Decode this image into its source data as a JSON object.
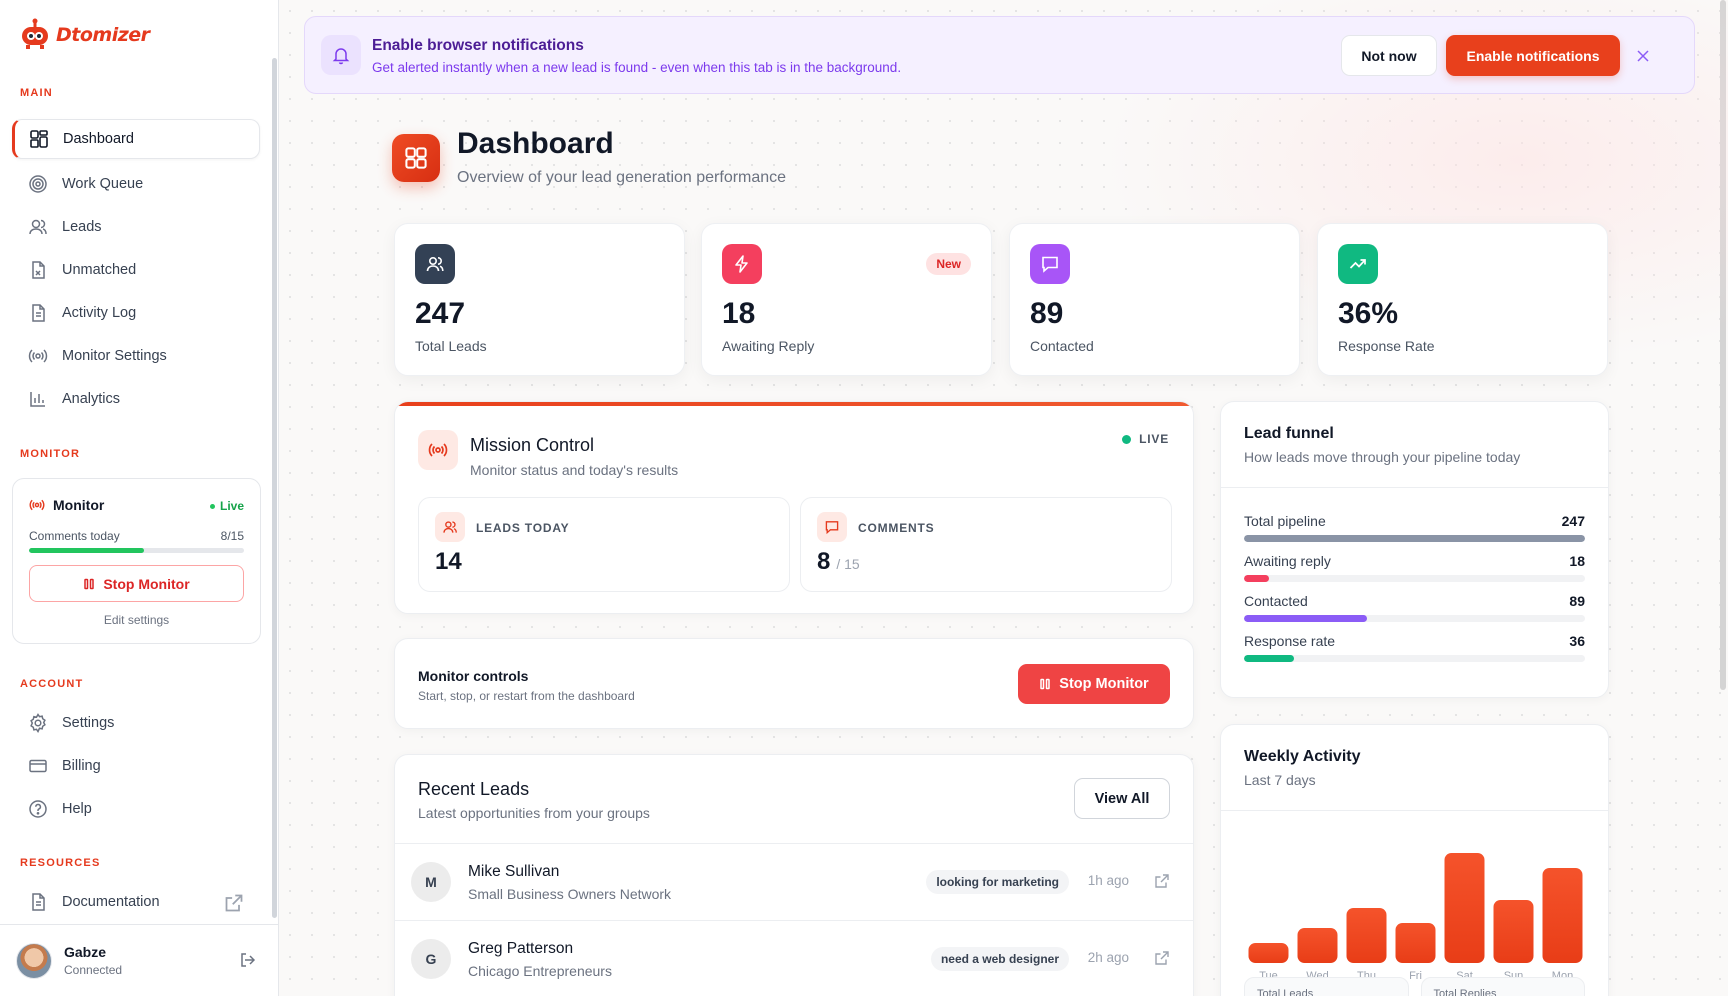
{
  "brand": {
    "name": "Dtomizer"
  },
  "sidebar": {
    "sections": {
      "main": "MAIN",
      "monitor": "MONITOR",
      "account": "ACCOUNT",
      "resources": "RESOURCES"
    },
    "main_items": [
      {
        "label": "Dashboard",
        "icon": "dashboard-icon",
        "active": true
      },
      {
        "label": "Work Queue",
        "icon": "target-icon"
      },
      {
        "label": "Leads",
        "icon": "users-icon"
      },
      {
        "label": "Unmatched",
        "icon": "file-x-icon"
      },
      {
        "label": "Activity Log",
        "icon": "file-text-icon"
      },
      {
        "label": "Monitor Settings",
        "icon": "radio-icon"
      },
      {
        "label": "Analytics",
        "icon": "bar-chart-icon"
      }
    ],
    "monitor_card": {
      "title": "Monitor",
      "status": "Live",
      "comments_label": "Comments today",
      "comments_value": "8/15",
      "progress": 0.533,
      "stop_label": "Stop Monitor",
      "edit_label": "Edit settings"
    },
    "account_items": [
      {
        "label": "Settings",
        "icon": "gear-icon"
      },
      {
        "label": "Billing",
        "icon": "credit-card-icon"
      },
      {
        "label": "Help",
        "icon": "help-circle-icon"
      }
    ],
    "resources_items": [
      {
        "label": "Documentation",
        "icon": "document-icon",
        "external": true
      }
    ],
    "user": {
      "name": "Gabze",
      "status": "Connected"
    }
  },
  "notification_banner": {
    "title": "Enable browser notifications",
    "subtitle": "Get alerted instantly when a new lead is found - even when this tab is in the background.",
    "not_now": "Not now",
    "enable": "Enable notifications"
  },
  "header": {
    "title": "Dashboard",
    "subtitle": "Overview of your lead generation performance"
  },
  "stats": [
    {
      "value": "247",
      "label": "Total Leads",
      "icon": "users-icon",
      "color": "#334155"
    },
    {
      "value": "18",
      "label": "Awaiting Reply",
      "icon": "lightning-icon",
      "color": "#f43f5e",
      "badge": "New"
    },
    {
      "value": "89",
      "label": "Contacted",
      "icon": "message-icon",
      "color": "#a855f7"
    },
    {
      "value": "36%",
      "label": "Response Rate",
      "icon": "trending-up-icon",
      "color": "#10b981"
    }
  ],
  "mission_control": {
    "title": "Mission Control",
    "subtitle": "Monitor status and today's results",
    "live": "LIVE",
    "leads_today_label": "LEADS TODAY",
    "leads_today_value": "14",
    "comments_label": "COMMENTS",
    "comments_value": "8",
    "comments_of": "/ 15"
  },
  "monitor_controls": {
    "title": "Monitor controls",
    "subtitle": "Start, stop, or restart from the dashboard",
    "button": "Stop Monitor"
  },
  "recent_leads": {
    "title": "Recent Leads",
    "subtitle": "Latest opportunities from your groups",
    "view_all": "View All",
    "rows": [
      {
        "initial": "M",
        "name": "Mike Sullivan",
        "group": "Small Business Owners Network",
        "tag": "looking for marketing",
        "time": "1h ago"
      },
      {
        "initial": "G",
        "name": "Greg Patterson",
        "group": "Chicago Entrepreneurs",
        "tag": "need a web designer",
        "time": "2h ago"
      }
    ]
  },
  "lead_funnel": {
    "title": "Lead funnel",
    "subtitle": "How leads move through your pipeline today",
    "rows": [
      {
        "label": "Total pipeline",
        "value": "247",
        "fraction": 1.0,
        "color": "#8a94a6"
      },
      {
        "label": "Awaiting reply",
        "value": "18",
        "fraction": 0.073,
        "color": "#f43f5e"
      },
      {
        "label": "Contacted",
        "value": "89",
        "fraction": 0.36,
        "color": "#8b5cf6"
      },
      {
        "label": "Response rate",
        "value": "36",
        "fraction": 0.146,
        "color": "#10b981"
      }
    ]
  },
  "weekly_activity": {
    "title": "Weekly Activity",
    "subtitle": "Last 7 days",
    "bottom_labels": [
      "Total Leads",
      "Total Replies"
    ]
  },
  "chart_data": {
    "type": "bar",
    "title": "Weekly Activity",
    "categories": [
      "Tue",
      "Wed",
      "Thu",
      "Fri",
      "Sat",
      "Sun",
      "Mon"
    ],
    "values": [
      2,
      3.5,
      5.5,
      4,
      11,
      6.3,
      9.5
    ],
    "ylim": [
      0,
      12
    ],
    "grid": false,
    "color": "#f04a20"
  }
}
